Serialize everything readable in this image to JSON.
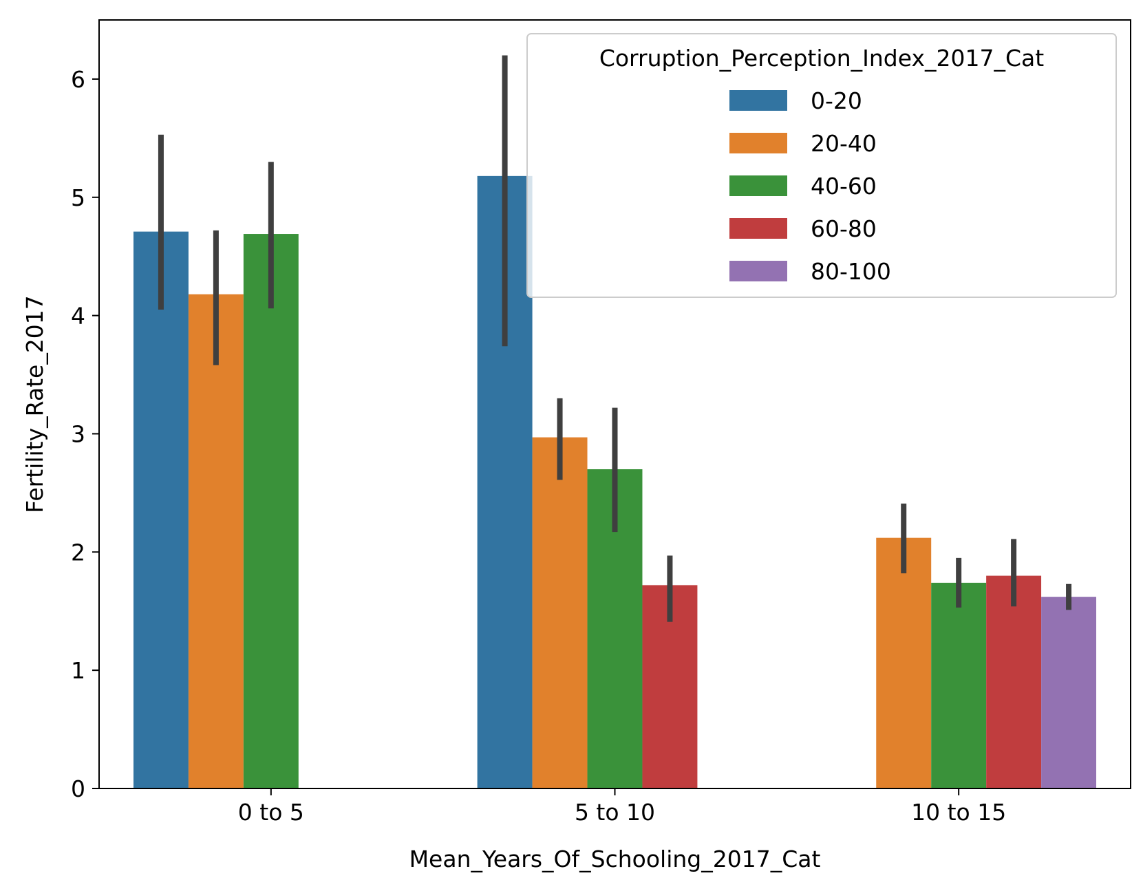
{
  "chart_data": {
    "type": "bar",
    "xlabel": "Mean_Years_Of_Schooling_2017_Cat",
    "ylabel": "Fertility_Rate_2017",
    "ylim": [
      0,
      6.5
    ],
    "yticks": [
      0,
      1,
      2,
      3,
      4,
      5,
      6
    ],
    "categories": [
      "0 to 5",
      "5 to 10",
      "10 to 15"
    ],
    "grid": false,
    "legend": {
      "title": "Corruption_Perception_Index_2017_Cat",
      "placement": "top-right"
    },
    "series": [
      {
        "name": "0-20",
        "color": "#3274a1",
        "values": [
          4.71,
          5.18,
          null
        ],
        "ci_low": [
          4.05,
          3.74,
          null
        ],
        "ci_high": [
          5.53,
          6.2,
          null
        ]
      },
      {
        "name": "20-40",
        "color": "#e1812c",
        "values": [
          4.18,
          2.97,
          2.12
        ],
        "ci_low": [
          3.58,
          2.61,
          1.82
        ],
        "ci_high": [
          4.72,
          3.3,
          2.41
        ]
      },
      {
        "name": "40-60",
        "color": "#3a923a",
        "values": [
          4.69,
          2.7,
          1.74
        ],
        "ci_low": [
          4.06,
          2.17,
          1.53
        ],
        "ci_high": [
          5.3,
          3.22,
          1.95
        ]
      },
      {
        "name": "60-80",
        "color": "#c03d3e",
        "values": [
          null,
          1.72,
          1.8
        ],
        "ci_low": [
          null,
          1.41,
          1.54
        ],
        "ci_high": [
          null,
          1.97,
          2.11
        ]
      },
      {
        "name": "80-100",
        "color": "#9372b2",
        "values": [
          null,
          null,
          1.62
        ],
        "ci_low": [
          null,
          null,
          1.51
        ],
        "ci_high": [
          null,
          null,
          1.73
        ]
      }
    ]
  }
}
